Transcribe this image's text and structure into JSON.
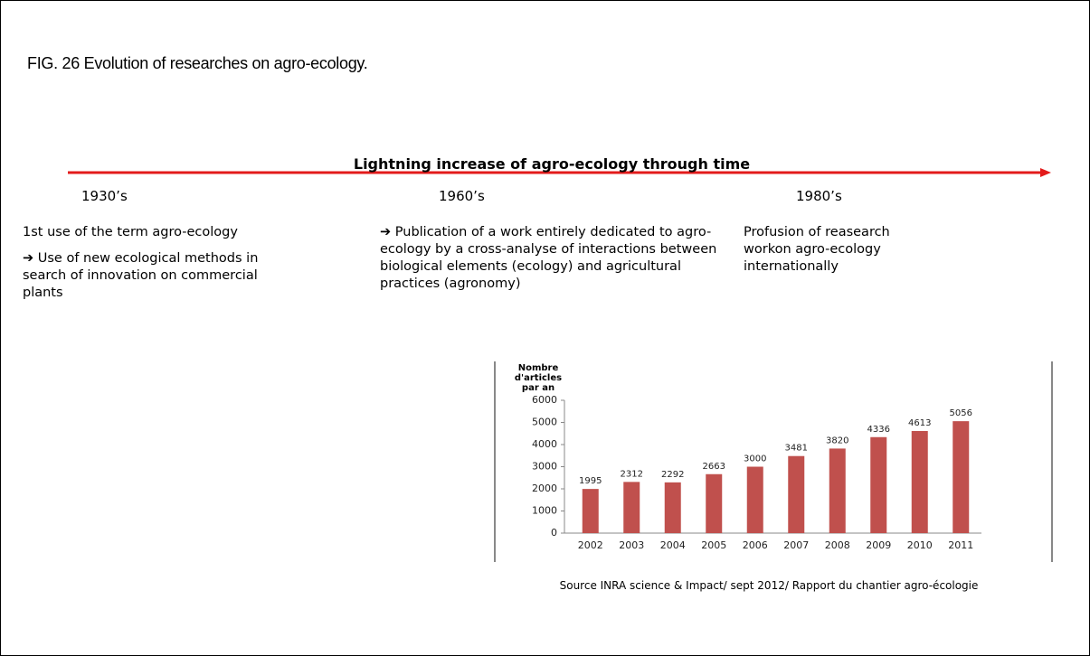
{
  "caption": "FIG. 26 Evolution of researches on agro-ecology.",
  "timeline": {
    "title": "Lightning increase of agro-ecology through time",
    "periods": [
      {
        "heading": "1930’s",
        "paragraphs": [
          "1st use of the term agro-ecology",
          "➔ Use of new ecological methods in search of innovation on commercial plants"
        ]
      },
      {
        "heading": "1960’s",
        "paragraphs": [
          "➔ Publication of a  work entirely dedicated to agro-ecology by a cross-analyse of interactions between biological elements (ecology) and agricultural practices (agronomy)"
        ]
      },
      {
        "heading": "1980’s",
        "paragraphs": [
          "Profusion of reasearch workon agro-ecology internationally"
        ]
      }
    ]
  },
  "chart_data": {
    "type": "bar",
    "y_label": "Nombre d'articles par an",
    "categories": [
      "2002",
      "2003",
      "2004",
      "2005",
      "2006",
      "2007",
      "2008",
      "2009",
      "2010",
      "2011"
    ],
    "values": [
      1995,
      2312,
      2292,
      2663,
      3000,
      3481,
      3820,
      4336,
      4613,
      5056
    ],
    "color": "#c0504d",
    "ylim": [
      0,
      6000
    ],
    "yticks": [
      0,
      1000,
      2000,
      3000,
      4000,
      5000,
      6000
    ]
  },
  "source": "Source INRA science & Impact/ sept 2012/ Rapport du chantier agro-écologie"
}
